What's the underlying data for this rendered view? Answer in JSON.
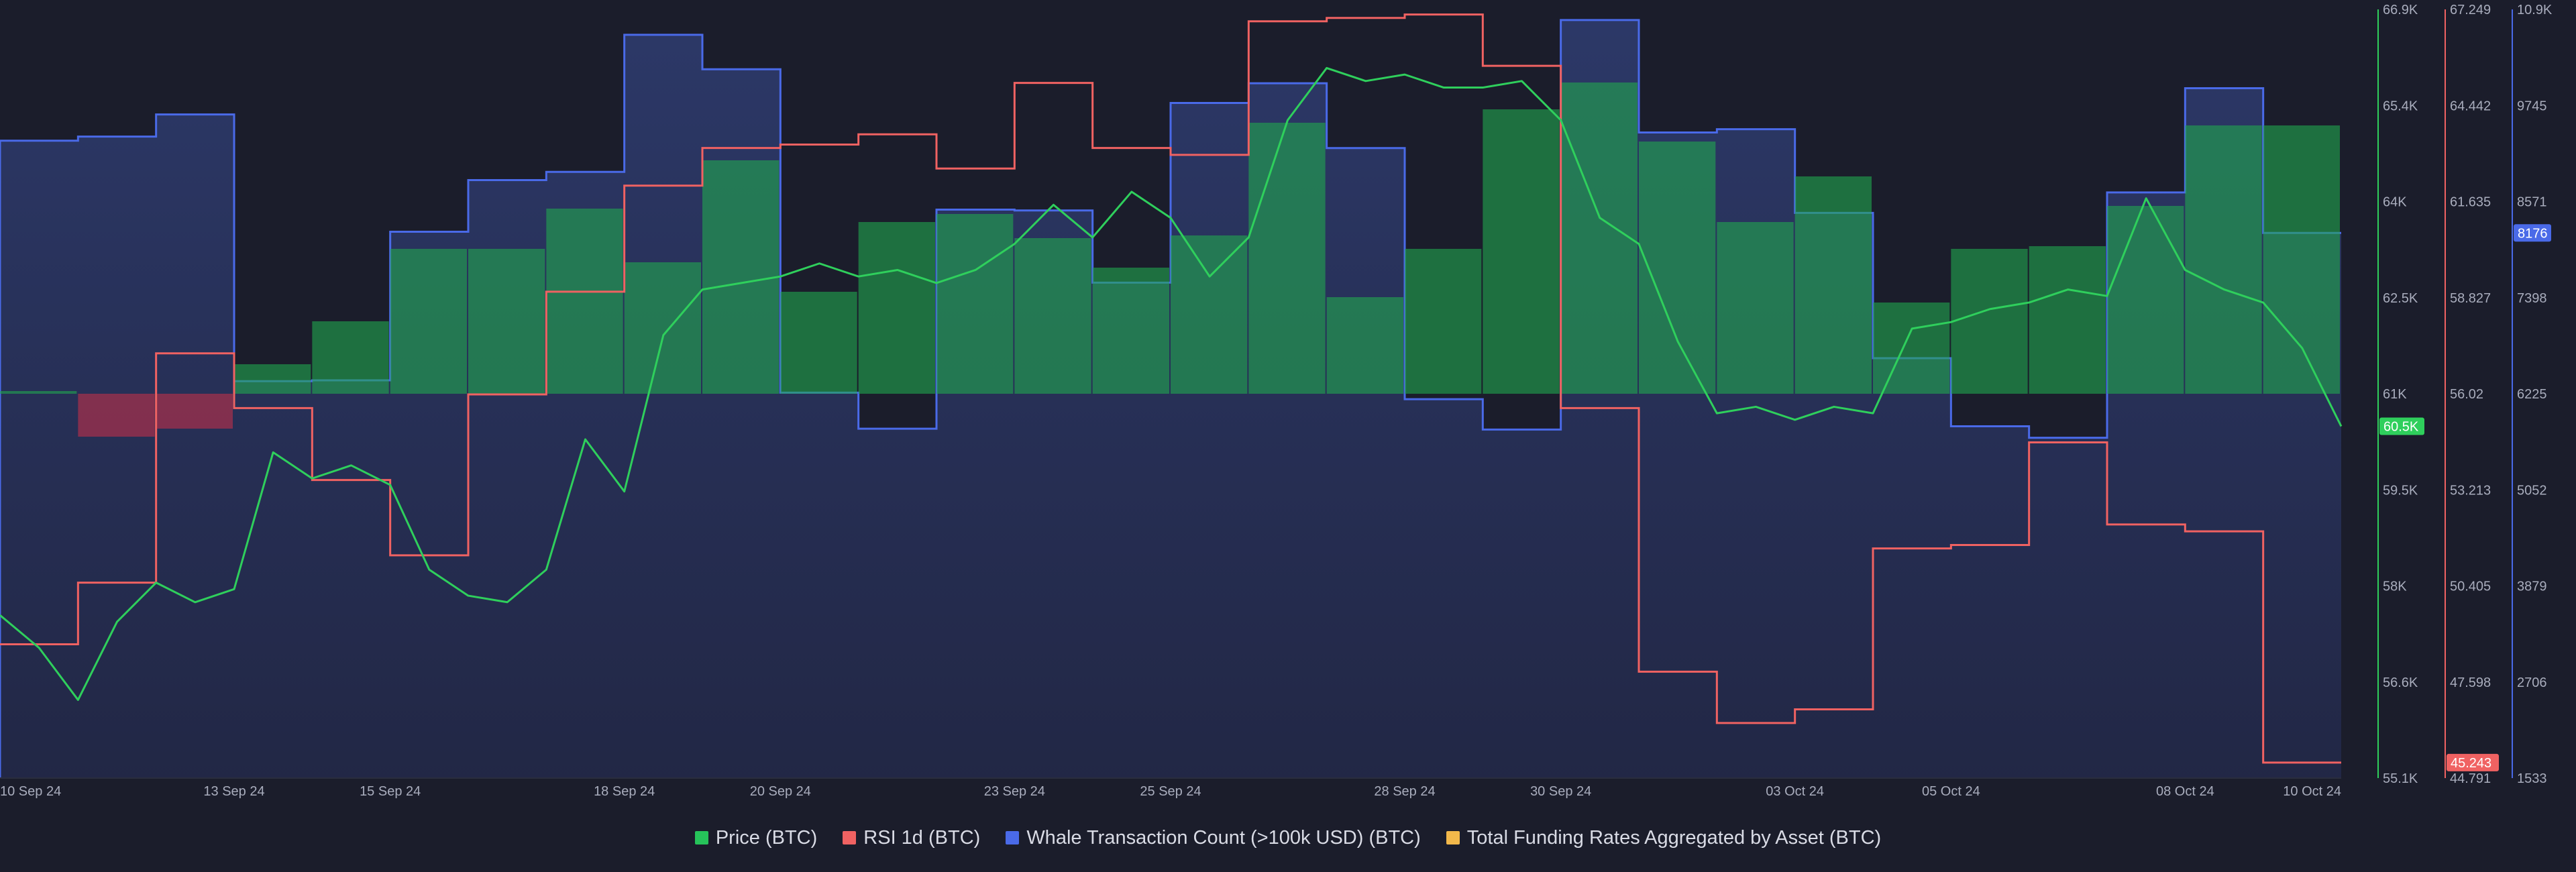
{
  "chart_data": {
    "type": "line",
    "x_ticks": [
      "10 Sep 24",
      "13 Sep 24",
      "15 Sep 24",
      "18 Sep 24",
      "20 Sep 24",
      "23 Sep 24",
      "25 Sep 24",
      "28 Sep 24",
      "30 Sep 24",
      "03 Oct 24",
      "05 Oct 24",
      "08 Oct 24",
      "10 Oct 24"
    ],
    "x_range": [
      "2024-09-10",
      "2024-10-10"
    ],
    "axes": {
      "price": {
        "range": [
          55100,
          66900
        ],
        "ticks": [
          "66.9K",
          "65.4K",
          "64K",
          "62.5K",
          "61K",
          "59.5K",
          "58K",
          "56.6K",
          "55.1K"
        ],
        "current_label": "60.5K",
        "color": "#2fcf5c"
      },
      "rsi": {
        "range": [
          44.791,
          67.249
        ],
        "ticks": [
          "67.249",
          "64.442",
          "61.635",
          "58.827",
          "56.02",
          "53.213",
          "50.405",
          "47.598",
          "44.791"
        ],
        "current_label": "45.243",
        "color": "#f06262"
      },
      "whale": {
        "range": [
          1533,
          10900
        ],
        "ticks": [
          "10.9K",
          "9745",
          "8571",
          "7398",
          "6225",
          "5052",
          "3879",
          "2706",
          "1533"
        ],
        "current_label": "8176",
        "color": "#4a6ae8"
      }
    },
    "legend": [
      {
        "label": "Price (BTC)",
        "color": "#26c35a"
      },
      {
        "label": "RSI 1d (BTC)",
        "color": "#f06262"
      },
      {
        "label": "Whale Transaction Count (>100k USD) (BTC)",
        "color": "#4a6ae8"
      },
      {
        "label": "Total Funding Rates Aggregated by Asset (BTC)",
        "color": "#f2b84b"
      }
    ],
    "funding_bars_note": "Daily funding-rate bars drawn relative to a zero line at 61K price level",
    "daily": [
      {
        "date": "2024-09-10",
        "whale": 9300,
        "rsi": 48.7,
        "funding": 0.1
      },
      {
        "date": "2024-09-11",
        "whale": 9350,
        "rsi": 50.5,
        "funding": -1.6
      },
      {
        "date": "2024-09-12",
        "whale": 9620,
        "rsi": 57.2,
        "funding": -1.3
      },
      {
        "date": "2024-09-13",
        "whale": 6370,
        "rsi": 55.6,
        "funding": 1.1
      },
      {
        "date": "2024-09-14",
        "whale": 6380,
        "rsi": 53.5,
        "funding": 2.7
      },
      {
        "date": "2024-09-15",
        "whale": 8190,
        "rsi": 51.3,
        "funding": 5.4
      },
      {
        "date": "2024-09-16",
        "whale": 8820,
        "rsi": 56.0,
        "funding": 5.4
      },
      {
        "date": "2024-09-17",
        "whale": 8920,
        "rsi": 59.0,
        "funding": 6.9
      },
      {
        "date": "2024-09-18",
        "whale": 10590,
        "rsi": 62.1,
        "funding": 4.9
      },
      {
        "date": "2024-09-19",
        "whale": 10170,
        "rsi": 63.2,
        "funding": 8.7
      },
      {
        "date": "2024-09-20",
        "whale": 6230,
        "rsi": 63.3,
        "funding": 3.8
      },
      {
        "date": "2024-09-21",
        "whale": 5790,
        "rsi": 63.6,
        "funding": 6.4
      },
      {
        "date": "2024-09-22",
        "whale": 8460,
        "rsi": 62.6,
        "funding": 6.7
      },
      {
        "date": "2024-09-23",
        "whale": 8450,
        "rsi": 65.1,
        "funding": 5.8
      },
      {
        "date": "2024-09-24",
        "whale": 7570,
        "rsi": 63.2,
        "funding": 4.7
      },
      {
        "date": "2024-09-25",
        "whale": 9760,
        "rsi": 63.0,
        "funding": 5.9
      },
      {
        "date": "2024-09-26",
        "whale": 10000,
        "rsi": 66.9,
        "funding": 10.1
      },
      {
        "date": "2024-09-27",
        "whale": 9210,
        "rsi": 67.0,
        "funding": 3.6
      },
      {
        "date": "2024-09-28",
        "whale": 6150,
        "rsi": 67.1,
        "funding": 5.4
      },
      {
        "date": "2024-09-29",
        "whale": 5780,
        "rsi": 65.6,
        "funding": 10.6
      },
      {
        "date": "2024-09-30",
        "whale": 10770,
        "rsi": 55.6,
        "funding": 11.6
      },
      {
        "date": "2024-10-01",
        "whale": 9400,
        "rsi": 47.9,
        "funding": 9.4
      },
      {
        "date": "2024-10-02",
        "whale": 9440,
        "rsi": 46.4,
        "funding": 6.4
      },
      {
        "date": "2024-10-03",
        "whale": 8420,
        "rsi": 46.8,
        "funding": 8.1
      },
      {
        "date": "2024-10-04",
        "whale": 6650,
        "rsi": 51.5,
        "funding": 3.4
      },
      {
        "date": "2024-10-05",
        "whale": 5820,
        "rsi": 51.6,
        "funding": 5.4
      },
      {
        "date": "2024-10-06",
        "whale": 5680,
        "rsi": 54.6,
        "funding": 5.5
      },
      {
        "date": "2024-10-07",
        "whale": 8670,
        "rsi": 52.2,
        "funding": 7.0
      },
      {
        "date": "2024-10-08",
        "whale": 9940,
        "rsi": 52.0,
        "funding": 10.0
      },
      {
        "date": "2024-10-09",
        "whale": 8176,
        "rsi": 45.243,
        "funding": 10.0
      }
    ],
    "price": [
      [
        "2024-09-10",
        57600
      ],
      [
        "2024-09-10T12",
        57100
      ],
      [
        "2024-09-11",
        56300
      ],
      [
        "2024-09-11T12",
        57500
      ],
      [
        "2024-09-12",
        58100
      ],
      [
        "2024-09-12T12",
        57800
      ],
      [
        "2024-09-13",
        58000
      ],
      [
        "2024-09-13T12",
        60100
      ],
      [
        "2024-09-14",
        59700
      ],
      [
        "2024-09-14T12",
        59900
      ],
      [
        "2024-09-15",
        59600
      ],
      [
        "2024-09-15T12",
        58300
      ],
      [
        "2024-09-16",
        57900
      ],
      [
        "2024-09-16T12",
        57800
      ],
      [
        "2024-09-17",
        58300
      ],
      [
        "2024-09-17T12",
        60300
      ],
      [
        "2024-09-18",
        59500
      ],
      [
        "2024-09-18T12",
        61900
      ],
      [
        "2024-09-19",
        62600
      ],
      [
        "2024-09-19T12",
        62700
      ],
      [
        "2024-09-20",
        62800
      ],
      [
        "2024-09-20T12",
        63000
      ],
      [
        "2024-09-21",
        62800
      ],
      [
        "2024-09-21T12",
        62900
      ],
      [
        "2024-09-22",
        62700
      ],
      [
        "2024-09-22T12",
        62900
      ],
      [
        "2024-09-23",
        63300
      ],
      [
        "2024-09-23T12",
        63900
      ],
      [
        "2024-09-24",
        63400
      ],
      [
        "2024-09-24T12",
        64100
      ],
      [
        "2024-09-25",
        63700
      ],
      [
        "2024-09-25T12",
        62800
      ],
      [
        "2024-09-26",
        63400
      ],
      [
        "2024-09-26T12",
        65200
      ],
      [
        "2024-09-27",
        66000
      ],
      [
        "2024-09-27T12",
        65800
      ],
      [
        "2024-09-28",
        65900
      ],
      [
        "2024-09-28T12",
        65700
      ],
      [
        "2024-09-29",
        65700
      ],
      [
        "2024-09-29T12",
        65800
      ],
      [
        "2024-09-30",
        65200
      ],
      [
        "2024-09-30T12",
        63700
      ],
      [
        "2024-10-01",
        63300
      ],
      [
        "2024-10-01T12",
        61800
      ],
      [
        "2024-10-02",
        60700
      ],
      [
        "2024-10-02T12",
        60800
      ],
      [
        "2024-10-03",
        60600
      ],
      [
        "2024-10-03T12",
        60800
      ],
      [
        "2024-10-04",
        60700
      ],
      [
        "2024-10-04T12",
        62000
      ],
      [
        "2024-10-05",
        62100
      ],
      [
        "2024-10-05T12",
        62300
      ],
      [
        "2024-10-06",
        62400
      ],
      [
        "2024-10-06T12",
        62600
      ],
      [
        "2024-10-07",
        62500
      ],
      [
        "2024-10-07T12",
        64000
      ],
      [
        "2024-10-08",
        62900
      ],
      [
        "2024-10-08T12",
        62600
      ],
      [
        "2024-10-09",
        62400
      ],
      [
        "2024-10-09T12",
        61700
      ],
      [
        "2024-10-10",
        60500
      ]
    ]
  }
}
